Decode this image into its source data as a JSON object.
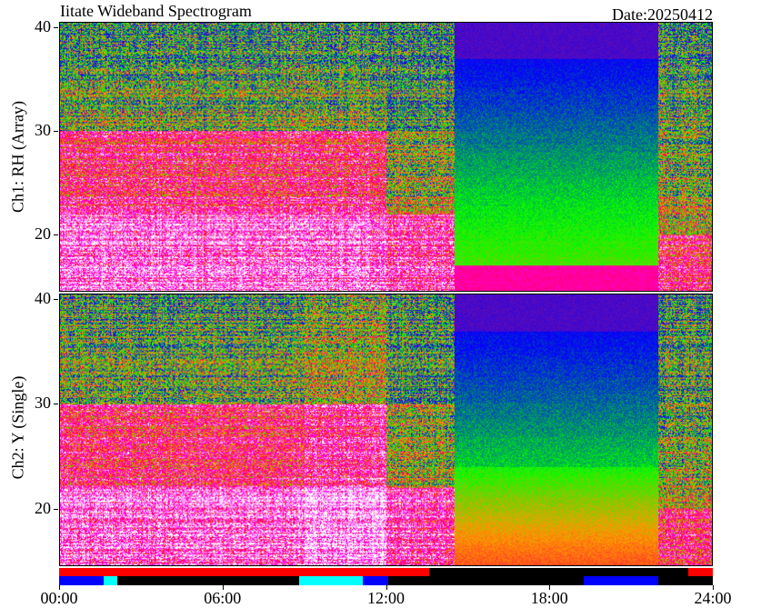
{
  "title": "Iitate Wideband Spectrogram",
  "date_label": "Date:20250412",
  "chart_data": {
    "type": "heatmap",
    "x_ticks": [
      "00:00",
      "06:00",
      "12:00",
      "18:00",
      "24:00"
    ],
    "x_range_hours": [
      0,
      24
    ],
    "panels": [
      {
        "ylabel": "Ch1: RH (Array)",
        "y_ticks": [
          "40",
          "30",
          "20"
        ],
        "y_tick_values": [
          40,
          30,
          20
        ],
        "ylim": [
          14.5,
          40.5
        ]
      },
      {
        "ylabel": "Ch2: Y (Single)",
        "y_ticks": [
          "40",
          "30",
          "20"
        ],
        "y_tick_values": [
          40,
          30,
          20
        ],
        "ylim": [
          14.5,
          40.5
        ]
      }
    ],
    "colormap": [
      "#6a0dad",
      "#0000ff",
      "#00ff00",
      "#ff9900",
      "#ff0040",
      "#ff00ff",
      "#ffffff"
    ],
    "status_bars": [
      {
        "segments": [
          {
            "start": 0,
            "end": 13.6,
            "color": "#ff0000"
          },
          {
            "start": 13.6,
            "end": 23.1,
            "color": "#000000"
          },
          {
            "start": 23.1,
            "end": 24,
            "color": "#ff0000"
          }
        ]
      },
      {
        "segments": [
          {
            "start": 0,
            "end": 1.65,
            "color": "#0000ff"
          },
          {
            "start": 1.65,
            "end": 2.15,
            "color": "#00ffff"
          },
          {
            "start": 2.15,
            "end": 8.8,
            "color": "#000000"
          },
          {
            "start": 8.8,
            "end": 11.15,
            "color": "#00ffff"
          },
          {
            "start": 11.15,
            "end": 12.1,
            "color": "#0000ff"
          },
          {
            "start": 12.1,
            "end": 19.25,
            "color": "#000000"
          },
          {
            "start": 19.25,
            "end": 22.0,
            "color": "#0000ff"
          },
          {
            "start": 22.0,
            "end": 24,
            "color": "#000000"
          }
        ]
      }
    ]
  }
}
